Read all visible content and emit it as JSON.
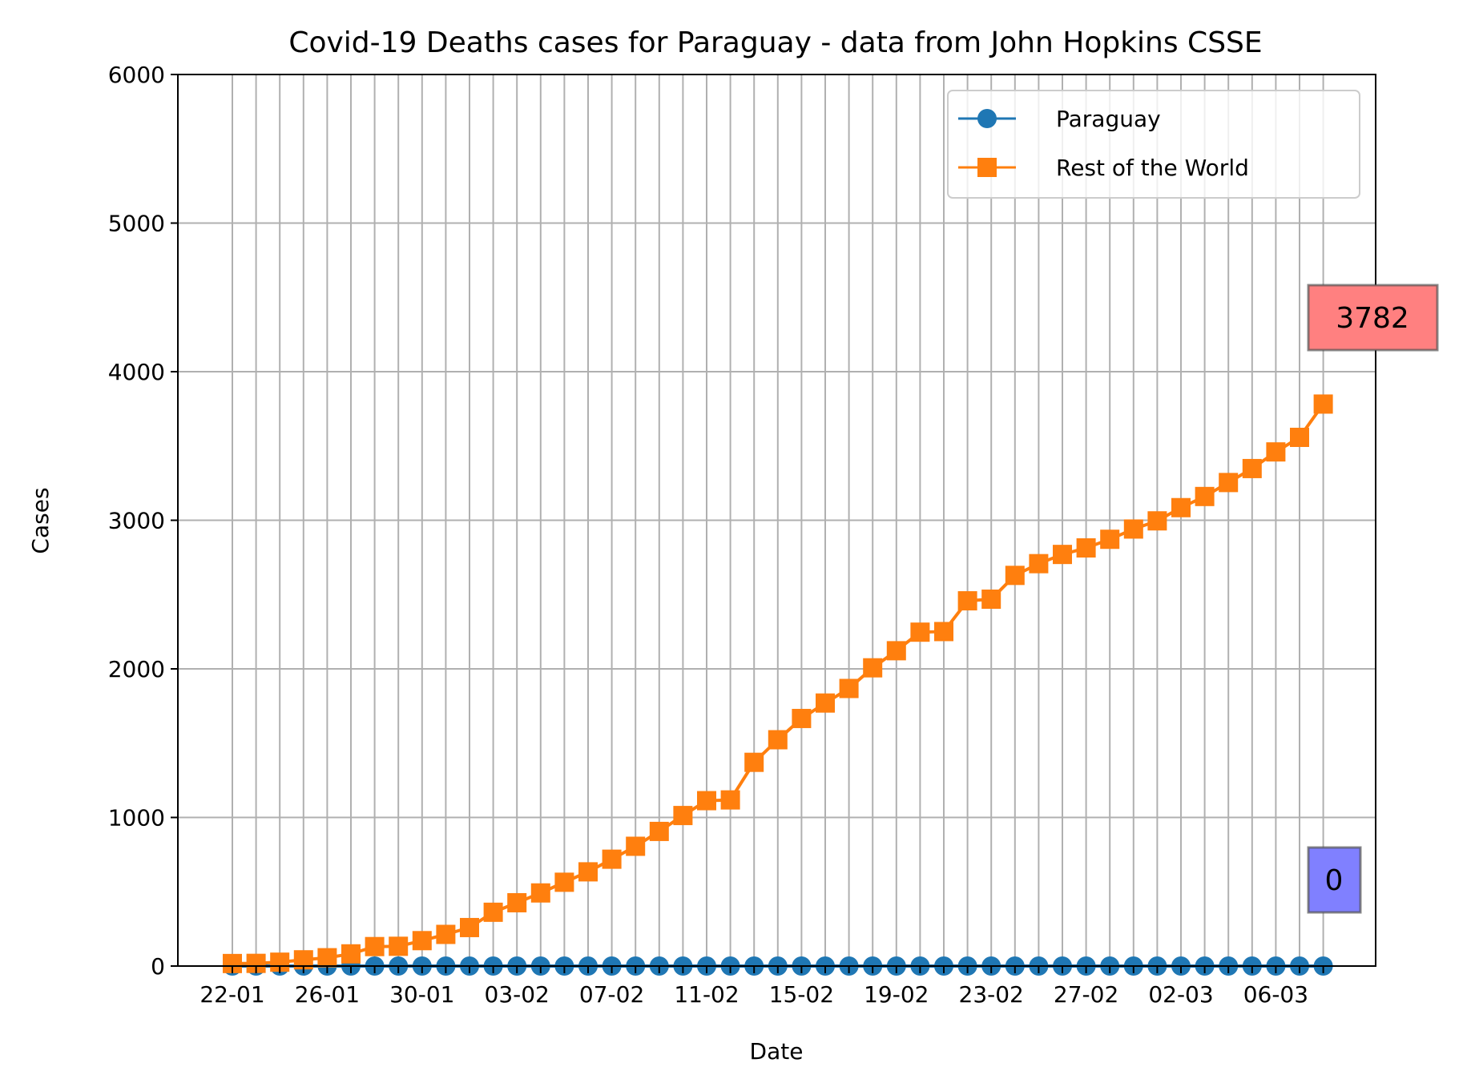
{
  "chart_data": {
    "type": "line",
    "title": "Covid-19 Deaths cases for Paraguay - data from John Hopkins CSSE",
    "xlabel": "Date",
    "ylabel": "Cases",
    "ylim": [
      0,
      6000
    ],
    "yticks": [
      0,
      1000,
      2000,
      3000,
      4000,
      5000,
      6000
    ],
    "grid": true,
    "legend_position": "top-right",
    "xtick_labels": [
      "22-01",
      "26-01",
      "30-01",
      "03-02",
      "07-02",
      "11-02",
      "15-02",
      "19-02",
      "23-02",
      "27-02",
      "02-03",
      "06-03"
    ],
    "x": [
      "22-01",
      "23-01",
      "24-01",
      "25-01",
      "26-01",
      "27-01",
      "28-01",
      "29-01",
      "30-01",
      "31-01",
      "01-02",
      "02-02",
      "03-02",
      "04-02",
      "05-02",
      "06-02",
      "07-02",
      "08-02",
      "09-02",
      "10-02",
      "11-02",
      "12-02",
      "13-02",
      "14-02",
      "15-02",
      "16-02",
      "17-02",
      "18-02",
      "19-02",
      "20-02",
      "21-02",
      "22-02",
      "23-02",
      "24-02",
      "25-02",
      "26-02",
      "27-02",
      "28-02",
      "29-02",
      "01-03",
      "02-03",
      "03-03",
      "04-03",
      "05-03",
      "06-03",
      "07-03",
      "08-03"
    ],
    "series": [
      {
        "name": "Paraguay",
        "color": "#1f77b4",
        "marker": "circle",
        "values": [
          0,
          0,
          0,
          0,
          0,
          0,
          0,
          0,
          0,
          0,
          0,
          0,
          0,
          0,
          0,
          0,
          0,
          0,
          0,
          0,
          0,
          0,
          0,
          0,
          0,
          0,
          0,
          0,
          0,
          0,
          0,
          0,
          0,
          0,
          0,
          0,
          0,
          0,
          0,
          0,
          0,
          0,
          0,
          0,
          0,
          0,
          0
        ]
      },
      {
        "name": "Rest of the World",
        "color": "#ff7f0e",
        "marker": "square",
        "values": [
          17,
          18,
          26,
          42,
          56,
          82,
          131,
          133,
          171,
          213,
          259,
          362,
          426,
          492,
          564,
          634,
          719,
          806,
          906,
          1013,
          1113,
          1118,
          1371,
          1523,
          1666,
          1770,
          1868,
          2007,
          2122,
          2247,
          2251,
          2458,
          2469,
          2629,
          2708,
          2770,
          2814,
          2872,
          2941,
          2996,
          3085,
          3160,
          3254,
          3348,
          3460,
          3558,
          3782
        ]
      }
    ],
    "annotations": [
      {
        "text": "3782",
        "background": "#ff8080"
      },
      {
        "text": "0",
        "background": "#8080ff"
      }
    ]
  }
}
